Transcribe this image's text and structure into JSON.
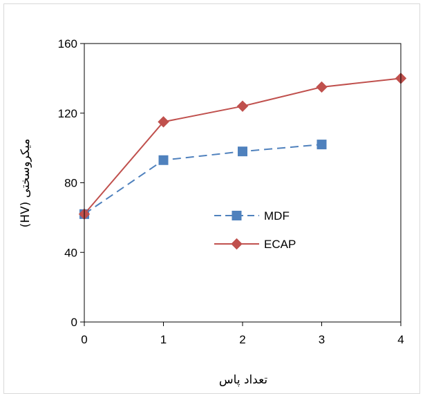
{
  "chart_data": {
    "type": "line",
    "title": "",
    "xlabel": "تعداد پاس",
    "ylabel": "میکروسختی (HV)",
    "xlim": [
      0,
      4
    ],
    "ylim": [
      0,
      160
    ],
    "x_ticks": [
      "0",
      "1",
      "2",
      "3",
      "4"
    ],
    "y_ticks": [
      "0",
      "40",
      "80",
      "120",
      "160"
    ],
    "grid": false,
    "legend_position": "center-right",
    "series": [
      {
        "name": "MDF",
        "x": [
          0,
          1,
          2,
          3
        ],
        "y": [
          62,
          93,
          98,
          102
        ],
        "color": "#4f81bd",
        "line_style": "dashed",
        "marker": "square"
      },
      {
        "name": "ECAP",
        "x": [
          0,
          1,
          2,
          3,
          4
        ],
        "y": [
          62,
          115,
          124,
          135,
          140
        ],
        "color": "#c0504d",
        "line_style": "solid",
        "marker": "diamond"
      }
    ]
  }
}
